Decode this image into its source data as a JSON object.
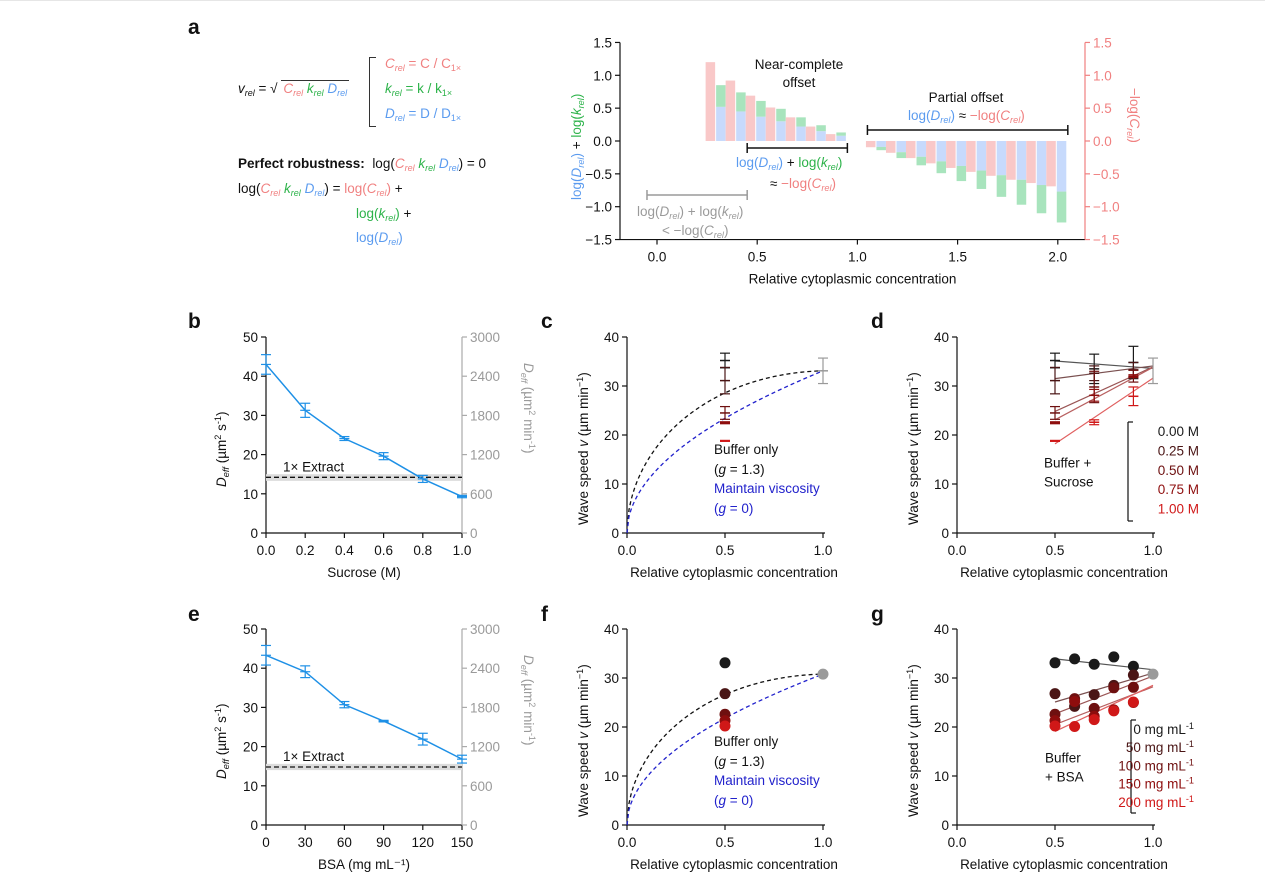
{
  "colors": {
    "red": "#f08080",
    "green": "#2db34a",
    "blue": "#5b9bef",
    "bar_red": "#f9c8c8",
    "bar_green": "#a8e4bd",
    "bar_blue": "#c7dafc",
    "deff_line": "#1e90e6",
    "gray": "#9a9a9a",
    "fit_black": "#111111",
    "fit_blue": "#2222cc",
    "series_shades": [
      "#1a1a1a",
      "#4a1515",
      "#6e1010",
      "#8e0d0d",
      "#d01818"
    ],
    "series_lines": [
      "#555555",
      "#7a5050",
      "#9a5555",
      "#b86060",
      "#e06060"
    ]
  },
  "panel_labels": [
    "a",
    "b",
    "c",
    "d",
    "e",
    "f",
    "g"
  ],
  "equations": {
    "v_rel": "v",
    "rel": "rel",
    "eq_sign": " = √",
    "C": "C",
    "k": "k",
    "D": "D",
    "c_def": " = C / C",
    "k_def": " = k / k",
    "d_def": " = D / D",
    "onex": "1×",
    "perfect_label": "Perfect robustness:",
    "log_open": "log(",
    "close_eq0": ") = 0",
    "close_eq": ") = ",
    "log": "log(",
    "close_plus": ") +",
    "close": ")"
  },
  "chart_data": [
    {
      "panel": "a",
      "type": "bar",
      "xlabel": "Relative cytoplasmic concentration",
      "ylabel_left": "log(D_rel) + log(k_rel)",
      "ylabel_right": "−log(C_rel)",
      "xlim": [
        -0.15,
        2.15
      ],
      "ylim": [
        -1.5,
        1.5
      ],
      "xticks": [
        "0.0",
        "0.5",
        "1.0",
        "1.5",
        "2.0"
      ],
      "yticks": [
        "−1.5",
        "−1.0",
        "−0.5",
        "0.0",
        "0.5",
        "1.0",
        "1.5"
      ],
      "x": [
        0.3,
        0.4,
        0.5,
        0.6,
        0.7,
        0.8,
        0.9,
        1.1,
        1.2,
        1.3,
        1.4,
        1.5,
        1.6,
        1.7,
        1.8,
        1.9,
        2.0
      ],
      "series": [
        {
          "name": "−log(C_rel)",
          "values": [
            1.2,
            0.92,
            0.69,
            0.51,
            0.36,
            0.22,
            0.105,
            -0.095,
            -0.18,
            -0.26,
            -0.34,
            -0.41,
            -0.47,
            -0.53,
            -0.59,
            -0.64,
            -0.69
          ]
        },
        {
          "name": "log(D_rel)",
          "values": [
            0.52,
            0.45,
            0.37,
            0.3,
            0.22,
            0.15,
            0.08,
            -0.09,
            -0.17,
            -0.24,
            -0.31,
            -0.38,
            -0.45,
            -0.52,
            -0.59,
            -0.67,
            -0.77
          ]
        },
        {
          "name": "log(k_rel)",
          "values": [
            0.33,
            0.29,
            0.24,
            0.19,
            0.14,
            0.09,
            0.05,
            -0.05,
            -0.09,
            -0.13,
            -0.18,
            -0.23,
            -0.28,
            -0.33,
            -0.38,
            -0.43,
            -0.47
          ]
        }
      ],
      "annotations": {
        "near_title_1": "Near-complete",
        "near_title_2": "offset",
        "partial_title": "Partial offset",
        "approx": " ≈ ",
        "plus": " + ",
        "lt": "< −",
        "minus": "−"
      },
      "brackets": [
        {
          "name": "near-complete-bracket",
          "x": [
            0.45,
            0.95
          ]
        },
        {
          "name": "partial-bracket",
          "x": [
            1.05,
            2.05
          ]
        },
        {
          "name": "insufficient-bracket",
          "x": [
            -0.05,
            0.45
          ]
        }
      ]
    },
    {
      "panel": "b",
      "type": "line",
      "xlabel": "Sucrose (M)",
      "ylabel_left": "D_eff (µm² s⁻¹)",
      "ylabel_right": "D_eff (µm² min⁻¹)",
      "xlim": [
        0,
        1
      ],
      "ylim": [
        0,
        50
      ],
      "ylim_right": [
        0,
        3000
      ],
      "xticks": [
        "0.0",
        "0.2",
        "0.4",
        "0.6",
        "0.8",
        "1.0"
      ],
      "yticks": [
        "0",
        "10",
        "20",
        "30",
        "40",
        "50"
      ],
      "yticks_right": [
        "0",
        "600",
        "1200",
        "1800",
        "2400",
        "3000"
      ],
      "x": [
        0.0,
        0.2,
        0.4,
        0.6,
        0.8,
        1.0
      ],
      "y": [
        43.0,
        31.3,
        24.1,
        19.6,
        13.8,
        9.3
      ],
      "err": [
        2.5,
        1.8,
        0.5,
        0.9,
        0.9,
        0.3
      ],
      "reference": {
        "label": "1× Extract",
        "value": 14.2,
        "band": [
          13.3,
          15.0
        ]
      }
    },
    {
      "panel": "c",
      "type": "scatter",
      "xlabel": "Relative cytoplasmic concentration",
      "ylabel": "Wave speed v (µm min⁻¹)",
      "xlim": [
        0,
        1
      ],
      "ylim": [
        0,
        40
      ],
      "xticks": [
        "0.0",
        "0.5",
        "1.0"
      ],
      "yticks": [
        "0",
        "10",
        "20",
        "30",
        "40"
      ],
      "points": [
        {
          "x": 0.5,
          "y": 35.2,
          "err": 1.5,
          "shade": 0
        },
        {
          "x": 0.5,
          "y": 31.1,
          "err": 2.7,
          "shade": 1
        },
        {
          "x": 0.5,
          "y": 24.5,
          "err": 1.3,
          "shade": 2
        },
        {
          "x": 0.5,
          "y": 22.5,
          "err": 0.2,
          "shade": 3
        },
        {
          "x": 0.5,
          "y": 18.8,
          "err": 0.1,
          "shade": 4
        },
        {
          "x": 1.0,
          "y": 33.1,
          "err": 2.6,
          "shade": -1
        }
      ],
      "fits": [
        {
          "name": "Buffer only",
          "g": 1.3,
          "y_at_1": 33.1
        },
        {
          "name": "Maintain viscosity",
          "g": 0,
          "y_at_1": 33.1
        }
      ],
      "legend": {
        "l1": "Buffer only",
        "l2a": "(",
        "l2g": "g",
        "l2b": " = 1.3)",
        "l3": "Maintain viscosity",
        "l4a": "(",
        "l4g": "g",
        "l4b": " = 0)"
      }
    },
    {
      "panel": "d",
      "type": "line",
      "xlabel": "Relative cytoplasmic concentration",
      "ylabel": "Wave speed v (µm min⁻¹)",
      "xlim": [
        0,
        1
      ],
      "ylim": [
        0,
        40
      ],
      "xticks": [
        "0.0",
        "0.5",
        "1.0"
      ],
      "yticks": [
        "0",
        "10",
        "20",
        "30",
        "40"
      ],
      "x": [
        0.5,
        0.7,
        0.9
      ],
      "reference_point": {
        "x": 1.0,
        "y": 33.1,
        "err": 2.6
      },
      "series": [
        {
          "name": "0.00 M",
          "y": [
            35.2,
            33.5,
            34.8
          ],
          "err": [
            1.5,
            3.0,
            3.3
          ],
          "fit": [
            35.1,
            33.6
          ]
        },
        {
          "name": "0.25 M",
          "y": [
            31.1,
            32.6,
            33.3
          ],
          "err": [
            2.7,
            1.5,
            1.5
          ],
          "fit": [
            31.5,
            34.1
          ]
        },
        {
          "name": "0.50 M",
          "y": [
            24.5,
            29.8,
            32.0
          ],
          "err": [
            1.3,
            3.2,
            1.2
          ],
          "fit": [
            24.8,
            33.9
          ]
        },
        {
          "name": "0.75 M",
          "y": [
            22.5,
            28.1,
            32.0
          ],
          "err": [
            0.2,
            1.2,
            0.3
          ],
          "fit": [
            23.1,
            33.8
          ]
        },
        {
          "name": "1.00 M",
          "y": [
            18.8,
            22.6,
            27.9
          ],
          "err": [
            0.1,
            0.5,
            1.9
          ],
          "fit": [
            18.2,
            31.6
          ]
        }
      ],
      "legend_title_1": "Buffer +",
      "legend_title_2": "Sucrose"
    },
    {
      "panel": "e",
      "type": "line",
      "xlabel": "BSA (mg mL⁻¹)",
      "ylabel_left": "D_eff (µm² s⁻¹)",
      "ylabel_right": "D_eff (µm² min⁻¹)",
      "xlim": [
        0,
        150
      ],
      "ylim": [
        0,
        50
      ],
      "ylim_right": [
        0,
        3000
      ],
      "xticks": [
        "0",
        "30",
        "60",
        "90",
        "120",
        "150"
      ],
      "yticks": [
        "0",
        "10",
        "20",
        "30",
        "40",
        "50"
      ],
      "yticks_right": [
        "0",
        "600",
        "1200",
        "1800",
        "2400",
        "3000"
      ],
      "x": [
        0,
        30,
        60,
        90,
        120,
        150
      ],
      "y": [
        43.3,
        39.1,
        30.7,
        26.5,
        21.9,
        16.8
      ],
      "err": [
        2.5,
        1.5,
        0.8,
        0.2,
        1.5,
        1.0
      ],
      "reference": {
        "label": "1× Extract",
        "value": 14.8,
        "band": [
          14.0,
          15.6
        ]
      }
    },
    {
      "panel": "f",
      "type": "scatter",
      "xlabel": "Relative cytoplasmic concentration",
      "ylabel": "Wave speed v (µm min⁻¹)",
      "xlim": [
        0,
        1
      ],
      "ylim": [
        0,
        40
      ],
      "xticks": [
        "0.0",
        "0.5",
        "1.0"
      ],
      "yticks": [
        "0",
        "10",
        "20",
        "30",
        "40"
      ],
      "points": [
        {
          "x": 0.5,
          "y": 33.1,
          "shade": 0
        },
        {
          "x": 0.5,
          "y": 26.8,
          "shade": 1
        },
        {
          "x": 0.5,
          "y": 22.6,
          "shade": 2
        },
        {
          "x": 0.5,
          "y": 21.3,
          "shade": 3
        },
        {
          "x": 0.5,
          "y": 20.2,
          "shade": 4
        },
        {
          "x": 1.0,
          "y": 30.8,
          "shade": -1
        }
      ],
      "fits": [
        {
          "name": "Buffer only",
          "g": 1.3,
          "y_at_1": 30.8
        },
        {
          "name": "Maintain viscosity",
          "g": 0,
          "y_at_1": 30.8
        }
      ],
      "legend": {
        "l1": "Buffer only",
        "l2a": "(",
        "l2g": "g",
        "l2b": " = 1.3)",
        "l3": "Maintain viscosity",
        "l4a": "(",
        "l4g": "g",
        "l4b": " = 0)"
      }
    },
    {
      "panel": "g",
      "type": "scatter",
      "xlabel": "Relative cytoplasmic concentration",
      "ylabel": "Wave speed v (µm min⁻¹)",
      "xlim": [
        0,
        1
      ],
      "ylim": [
        0,
        40
      ],
      "xticks": [
        "0.0",
        "0.5",
        "1.0"
      ],
      "yticks": [
        "0",
        "10",
        "20",
        "30",
        "40"
      ],
      "x": [
        0.5,
        0.6,
        0.7,
        0.8,
        0.9
      ],
      "reference_point": {
        "x": 1.0,
        "y": 30.8
      },
      "series": [
        {
          "name": "0 mg mL⁻¹",
          "y": [
            33.1,
            33.9,
            32.8,
            34.3,
            32.4
          ],
          "fit": [
            33.9,
            31.7
          ]
        },
        {
          "name": "50 mg mL⁻¹",
          "y": [
            26.8,
            24.2,
            26.6,
            28.5,
            30.6
          ],
          "fit": [
            25.1,
            31.0
          ]
        },
        {
          "name": "100 mg mL⁻¹",
          "y": [
            22.6,
            25.8,
            23.8,
            28.0,
            28.1
          ],
          "fit": [
            22.7,
            30.4
          ]
        },
        {
          "name": "150 mg mL⁻¹",
          "y": [
            21.3,
            25.2,
            22.2,
            23.5,
            25.0
          ],
          "fit": [
            20.5,
            28.2
          ]
        },
        {
          "name": "200 mg mL⁻¹",
          "y": [
            20.2,
            20.1,
            21.5,
            23.3,
            25.1
          ],
          "fit": [
            19.1,
            28.5
          ]
        }
      ],
      "legend_title_1": "Buffer",
      "legend_title_2": "+ BSA"
    }
  ]
}
